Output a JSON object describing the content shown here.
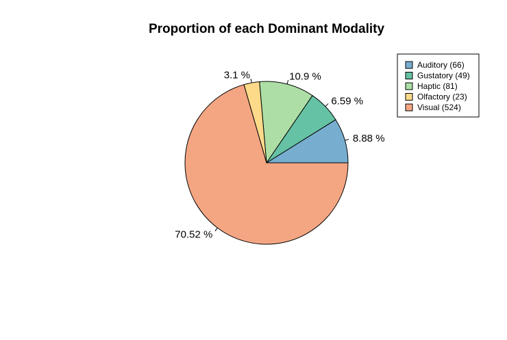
{
  "chart_data": {
    "type": "pie",
    "title": "Proportion of each Dominant Modality",
    "start_angle_deg": 0,
    "direction": "counterclockwise",
    "legend_position": "top-right",
    "slices": [
      {
        "label": "Auditory",
        "count": 66,
        "percent_label": "8.88 %",
        "color": "#77AECF"
      },
      {
        "label": "Gustatory",
        "count": 49,
        "percent_label": "6.59 %",
        "color": "#66C2A4"
      },
      {
        "label": "Haptic",
        "count": 81,
        "percent_label": "10.9 %",
        "color": "#ADDEA6"
      },
      {
        "label": "Olfactory",
        "count": 23,
        "percent_label": "3.1 %",
        "color": "#FDDA8A"
      },
      {
        "label": "Visual",
        "count": 524,
        "percent_label": "70.52 %",
        "color": "#F4A683"
      }
    ],
    "legend": [
      "Auditory (66)",
      "Gustatory (49)",
      "Haptic (81)",
      "Olfactory (23)",
      "Visual (524)"
    ]
  }
}
